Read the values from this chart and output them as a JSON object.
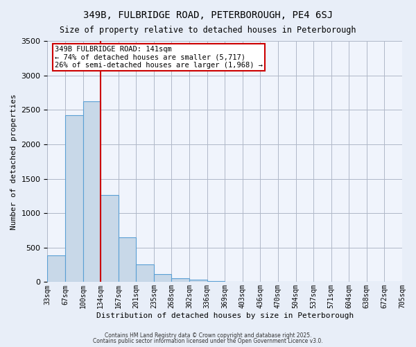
{
  "title1": "349B, FULBRIDGE ROAD, PETERBOROUGH, PE4 6SJ",
  "title2": "Size of property relative to detached houses in Peterborough",
  "xlabel": "Distribution of detached houses by size in Peterborough",
  "ylabel": "Number of detached properties",
  "bar_values": [
    390,
    2420,
    2620,
    1260,
    650,
    260,
    110,
    55,
    30,
    10,
    5,
    2,
    0,
    0,
    0,
    0,
    0,
    0,
    0,
    0
  ],
  "x_labels": [
    "33sqm",
    "67sqm",
    "100sqm",
    "134sqm",
    "167sqm",
    "201sqm",
    "235sqm",
    "268sqm",
    "302sqm",
    "336sqm",
    "369sqm",
    "403sqm",
    "436sqm",
    "470sqm",
    "504sqm",
    "537sqm",
    "571sqm",
    "604sqm",
    "638sqm",
    "672sqm",
    "705sqm"
  ],
  "bar_color": "#c8d8e8",
  "bar_edge_color": "#5a9fd4",
  "vline_color": "#cc0000",
  "annotation_text": "349B FULBRIDGE ROAD: 141sqm\n← 74% of detached houses are smaller (5,717)\n26% of semi-detached houses are larger (1,968) →",
  "annotation_box_color": "#ffffff",
  "annotation_border_color": "#cc0000",
  "ylim": [
    0,
    3500
  ],
  "yticks": [
    0,
    500,
    1000,
    1500,
    2000,
    2500,
    3000,
    3500
  ],
  "bg_color": "#e8eef8",
  "plot_bg_color": "#f0f4fc",
  "footer1": "Contains HM Land Registry data © Crown copyright and database right 2025.",
  "footer2": "Contains public sector information licensed under the Open Government Licence v3.0."
}
